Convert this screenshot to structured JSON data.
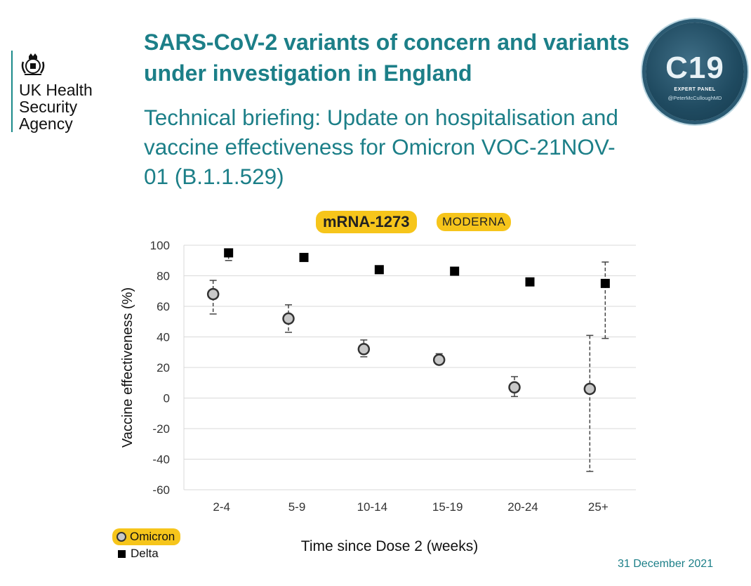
{
  "org": {
    "lines": [
      "UK Health",
      "Security",
      "Agency"
    ]
  },
  "title": "SARS-CoV-2 variants of concern and variants under investigation in England",
  "subtitle": "Technical briefing: Update on hospitalisation and vaccine effectiveness for Omicron VOC-21NOV-01 (B.1.1.529)",
  "badge": {
    "big": "C19",
    "small": "EXPERT PANEL",
    "handle": "@PeterMcCulloughMD"
  },
  "pills": {
    "vaccine": "mRNA-1273",
    "brand": "MODERNA"
  },
  "legend": {
    "omicron": "Omicron",
    "delta": "Delta"
  },
  "date": "31 December 2021",
  "colors": {
    "accent": "#1c7f88",
    "highlight": "#f6c51b",
    "omicron_fill": "#c8c8c8",
    "delta_fill": "#000000"
  },
  "chart_data": {
    "type": "scatter",
    "categories": [
      "2-4",
      "5-9",
      "10-14",
      "15-19",
      "20-24",
      "25+"
    ],
    "xlabel": "Time since Dose 2 (weeks)",
    "ylabel": "Vaccine effectiveness (%)",
    "ylim": [
      -60,
      100
    ],
    "yticks": [
      -60,
      -40,
      -20,
      0,
      20,
      40,
      60,
      80,
      100
    ],
    "grid": true,
    "series": [
      {
        "name": "Omicron",
        "marker": "circle",
        "values": [
          68,
          52,
          32,
          25,
          7,
          6
        ],
        "ci_low": [
          55,
          43,
          27,
          23,
          1,
          -48
        ],
        "ci_high": [
          77,
          61,
          38,
          29,
          14,
          41
        ]
      },
      {
        "name": "Delta",
        "marker": "square",
        "values": [
          95,
          92,
          84,
          83,
          76,
          75
        ],
        "ci_low": [
          90,
          90,
          82,
          81,
          74,
          39
        ],
        "ci_high": [
          97,
          93,
          86,
          85,
          78,
          89
        ]
      }
    ]
  }
}
